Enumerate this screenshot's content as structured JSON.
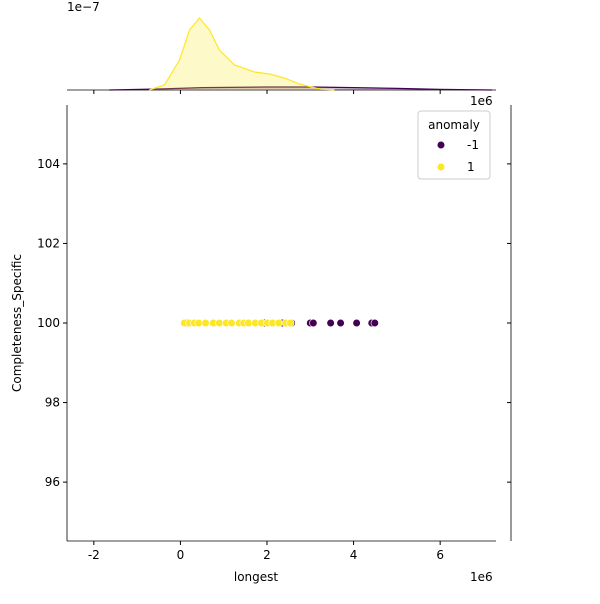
{
  "chart_data": {
    "type": "scatter",
    "x_label": "longest",
    "y_label": "Completeness_Specific",
    "x_offset_label": "1e6",
    "marginal_offset_label": "1e−7",
    "xlim": [
      -2.62,
      7.29
    ],
    "xticks": [
      -2,
      0,
      2,
      4,
      6
    ],
    "ylim": [
      94.52,
      105.48
    ],
    "yticks": [
      96,
      98,
      100,
      102,
      104
    ],
    "legend": {
      "title": "anomaly",
      "position": "upper right"
    },
    "series": [
      {
        "name": "-1",
        "color": "#440154",
        "x": [
          0.16,
          1.94,
          2.36,
          2.57,
          3.0,
          3.07,
          3.47,
          3.7,
          4.07,
          4.42,
          4.49
        ],
        "values": [
          100,
          100,
          100,
          100,
          100,
          100,
          100,
          100,
          100,
          100,
          100
        ]
      },
      {
        "name": "1",
        "color": "#fde725",
        "x": [
          0.09,
          0.21,
          0.32,
          0.42,
          0.58,
          0.76,
          0.9,
          1.06,
          1.18,
          1.36,
          1.46,
          1.57,
          1.73,
          1.87,
          2.01,
          2.13,
          2.27,
          2.43,
          2.54
        ],
        "values": [
          100,
          100,
          100,
          100,
          100,
          100,
          100,
          100,
          100,
          100,
          100,
          100,
          100,
          100,
          100,
          100,
          100,
          100,
          100
        ]
      }
    ],
    "marginal": {
      "type": "area",
      "ylim": [
        0,
        3.6
      ],
      "series": [
        {
          "name": "-1",
          "color": "#440154",
          "x": [
            -1.64,
            -0.5,
            0.5,
            2,
            3,
            4,
            5,
            6,
            7.2
          ],
          "values": [
            0,
            0.05,
            0.12,
            0.15,
            0.15,
            0.12,
            0.08,
            0.03,
            0
          ]
        },
        {
          "name": "1",
          "color": "#fde725",
          "x": [
            -0.72,
            -0.37,
            -0.02,
            0.21,
            0.44,
            0.67,
            0.9,
            1.25,
            1.71,
            2.06,
            2.4,
            2.75,
            3.21,
            3.56
          ],
          "values": [
            0,
            0.25,
            1.5,
            3.0,
            3.6,
            3.0,
            2.0,
            1.25,
            0.9,
            0.8,
            0.6,
            0.3,
            0.05,
            0
          ]
        }
      ]
    }
  }
}
